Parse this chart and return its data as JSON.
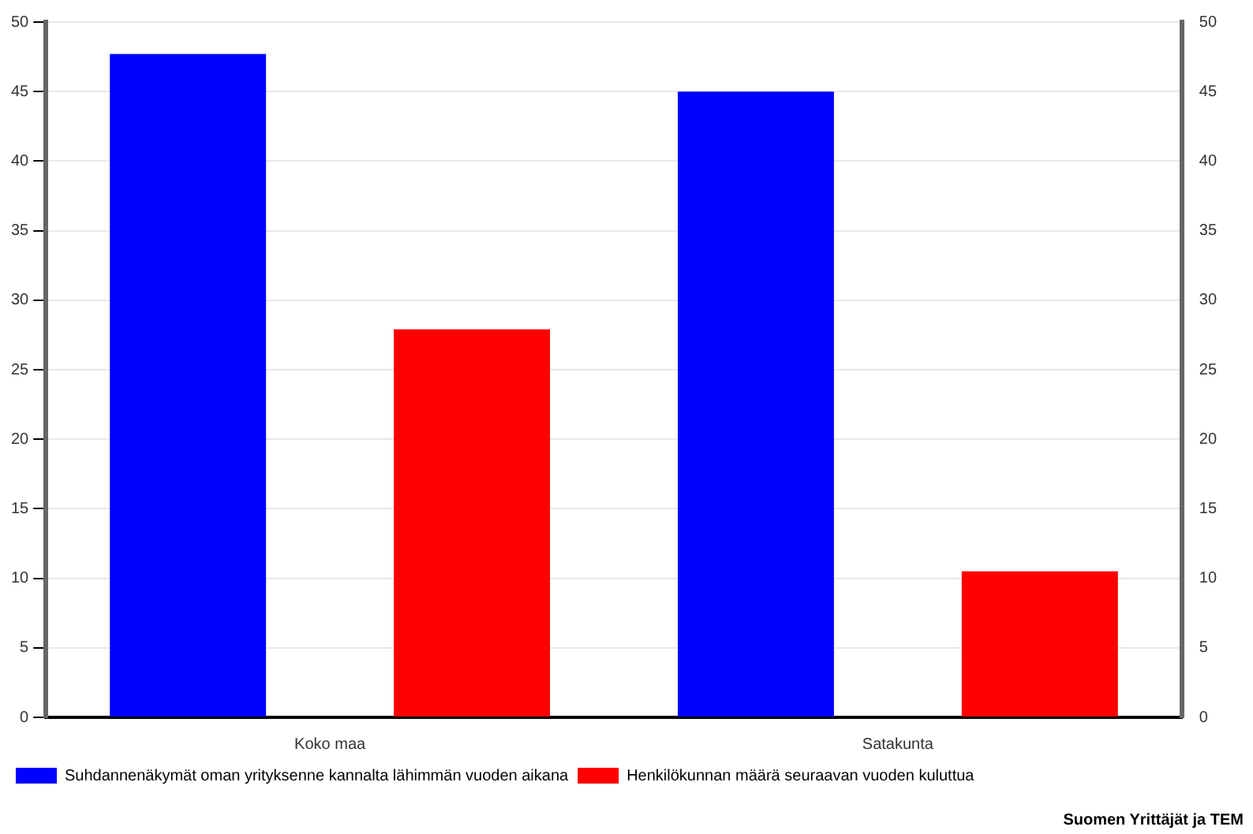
{
  "chart_data": {
    "type": "bar",
    "categories": [
      "Koko maa",
      "Satakunta"
    ],
    "series": [
      {
        "name": "Suhdannenäkymät oman yrityksenne kannalta lähimmän vuoden aikana",
        "color": "#0000ff",
        "values": [
          47.7,
          45
        ]
      },
      {
        "name": "Henkilökunnan määrä seuraavan vuoden kuluttua",
        "color": "#ff0000",
        "values": [
          27.9,
          10.5
        ]
      }
    ],
    "ylim": [
      0,
      50
    ],
    "yticks": [
      0,
      5,
      10,
      15,
      20,
      25,
      30,
      35,
      40,
      45,
      50
    ],
    "y2lim": [
      0,
      50
    ],
    "y2ticks": [
      0,
      5,
      10,
      15,
      20,
      25,
      30,
      35,
      40,
      45,
      50
    ],
    "grid": "y",
    "legend": "bottom left",
    "annotations": [
      "Suomen Yrittäjät ja TEM"
    ]
  }
}
